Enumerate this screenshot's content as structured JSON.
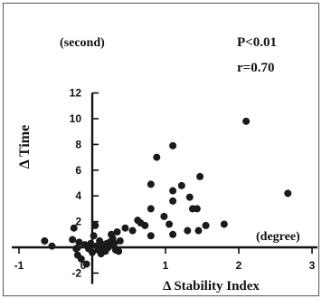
{
  "chart_data": {
    "type": "scatter",
    "title": "",
    "xlabel": "Δ Stability Index",
    "ylabel": "Δ Time",
    "x_unit": "(degree)",
    "y_unit": "(second)",
    "annotations": [
      "P<0.01",
      "r=0.70"
    ],
    "xlim": [
      -1,
      3
    ],
    "ylim": [
      -2,
      12
    ],
    "x_ticks": [
      -1,
      0,
      1,
      2,
      3
    ],
    "y_ticks": [
      -2,
      0,
      2,
      4,
      6,
      8,
      10,
      12
    ],
    "grid": false,
    "points": [
      {
        "x": -0.65,
        "y": 0.5
      },
      {
        "x": -0.55,
        "y": 0.1
      },
      {
        "x": -0.27,
        "y": 0.6
      },
      {
        "x": -0.25,
        "y": 1.5
      },
      {
        "x": -0.22,
        "y": -0.1
      },
      {
        "x": -0.2,
        "y": -0.6
      },
      {
        "x": -0.18,
        "y": 0.4
      },
      {
        "x": -0.15,
        "y": -0.9
      },
      {
        "x": -0.1,
        "y": 0.2
      },
      {
        "x": -0.08,
        "y": -1.3
      },
      {
        "x": -0.05,
        "y": -0.1
      },
      {
        "x": -0.02,
        "y": 0.3
      },
      {
        "x": 0.0,
        "y": -0.4
      },
      {
        "x": 0.02,
        "y": 0.9
      },
      {
        "x": 0.04,
        "y": 1.7
      },
      {
        "x": 0.06,
        "y": 0.1
      },
      {
        "x": 0.08,
        "y": -0.2
      },
      {
        "x": 0.1,
        "y": 0.5
      },
      {
        "x": 0.12,
        "y": -0.5
      },
      {
        "x": 0.14,
        "y": 0.0
      },
      {
        "x": 0.16,
        "y": 0.2
      },
      {
        "x": 0.18,
        "y": -0.3
      },
      {
        "x": 0.2,
        "y": 0.3
      },
      {
        "x": 0.22,
        "y": 0.0
      },
      {
        "x": 0.24,
        "y": 0.4
      },
      {
        "x": 0.26,
        "y": 1.0
      },
      {
        "x": 0.28,
        "y": 0.7
      },
      {
        "x": 0.3,
        "y": 0.3
      },
      {
        "x": 0.32,
        "y": -0.2
      },
      {
        "x": 0.34,
        "y": 1.2
      },
      {
        "x": 0.36,
        "y": -0.3
      },
      {
        "x": 0.38,
        "y": 0.5
      },
      {
        "x": 0.45,
        "y": 1.5
      },
      {
        "x": 0.55,
        "y": 1.3
      },
      {
        "x": 0.62,
        "y": 2.1
      },
      {
        "x": 0.66,
        "y": 1.9
      },
      {
        "x": 0.72,
        "y": 1.7
      },
      {
        "x": 0.8,
        "y": 0.9
      },
      {
        "x": 0.8,
        "y": 3.0
      },
      {
        "x": 0.8,
        "y": 4.9
      },
      {
        "x": 0.88,
        "y": 7.0
      },
      {
        "x": 0.98,
        "y": 2.4
      },
      {
        "x": 1.05,
        "y": 1.8
      },
      {
        "x": 1.1,
        "y": 1.0
      },
      {
        "x": 1.1,
        "y": 3.6
      },
      {
        "x": 1.1,
        "y": 4.4
      },
      {
        "x": 1.1,
        "y": 7.9
      },
      {
        "x": 1.22,
        "y": 4.8
      },
      {
        "x": 1.3,
        "y": 1.3
      },
      {
        "x": 1.33,
        "y": 3.9
      },
      {
        "x": 1.37,
        "y": 3.0
      },
      {
        "x": 1.43,
        "y": 3.0
      },
      {
        "x": 1.45,
        "y": 1.3
      },
      {
        "x": 1.47,
        "y": 5.5
      },
      {
        "x": 1.55,
        "y": 1.7
      },
      {
        "x": 1.8,
        "y": 1.8
      },
      {
        "x": 2.1,
        "y": 9.8
      },
      {
        "x": 2.67,
        "y": 4.2
      }
    ]
  }
}
